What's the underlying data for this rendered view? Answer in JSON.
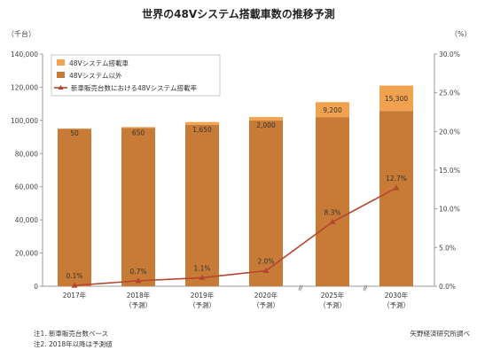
{
  "chart_data": {
    "type": "bar",
    "title": "世界の48Vシステム搭載車数の推移予測",
    "left_unit": "（千台）",
    "right_unit": "（%）",
    "categories": [
      [
        "2017年"
      ],
      [
        "2018年",
        "（予測）"
      ],
      [
        "2019年",
        "（予測）"
      ],
      [
        "2020年",
        "（予測）"
      ],
      [
        "2025年",
        "（予測）"
      ],
      [
        "2030年",
        "（予測）"
      ]
    ],
    "series": [
      {
        "name": "48Vシステム以外",
        "kind": "bar-stacked-base",
        "axis": "left",
        "color": "#c77b36",
        "values": [
          95000,
          95350,
          97350,
          100000,
          101800,
          105700
        ]
      },
      {
        "name": "48Vシステム搭載車",
        "kind": "bar-stacked-top",
        "axis": "left",
        "color": "#f0a24e",
        "values": [
          50,
          650,
          1650,
          2000,
          9200,
          15300
        ],
        "labels": [
          "50",
          "650",
          "1,650",
          "2,000",
          "9,200",
          "15,300"
        ]
      },
      {
        "name": "新車販売台数における48Vシステム搭載率",
        "kind": "line",
        "axis": "right",
        "color": "#b5452f",
        "values": [
          0.1,
          0.7,
          1.1,
          2.0,
          8.3,
          12.7
        ],
        "labels": [
          "0.1%",
          "0.7%",
          "1.1%",
          "2.0%",
          "8.3%",
          "12.7%"
        ]
      }
    ],
    "ylim_left": [
      0,
      140000
    ],
    "ylim_right": [
      0,
      30
    ],
    "left_ticks": [
      "0",
      "20,000",
      "40,000",
      "60,000",
      "80,000",
      "100,000",
      "120,000",
      "140,000"
    ],
    "right_ticks": [
      "0.0%",
      "5.0%",
      "10.0%",
      "15.0%",
      "20.0%",
      "25.0%",
      "30.0%"
    ],
    "axis_break_marks": "≈",
    "legend_position": "top-left",
    "grid": false,
    "notes": [
      "注1. 新車販売台数ベース",
      "注2. 2018年以降は予測値"
    ],
    "source": "矢野経済研究所調べ"
  }
}
